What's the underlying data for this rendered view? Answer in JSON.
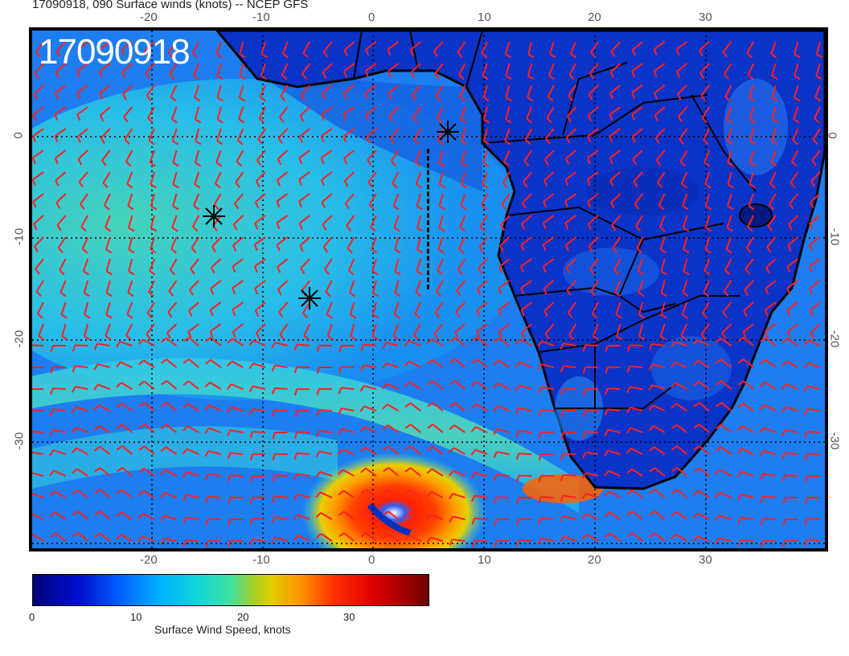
{
  "header": {
    "title": "17090918, 090 Surface winds (knots) -- NCEP GFS"
  },
  "map": {
    "stamp": "17090918",
    "top_lon_labels": [
      "-20",
      "-10",
      "0",
      "10",
      "20",
      "30"
    ],
    "bottom_lon_labels": [
      "-20",
      "-10",
      "0",
      "10",
      "20",
      "30"
    ],
    "left_lat_labels": [
      "0",
      "-10",
      "-20",
      "-30"
    ],
    "right_lat_labels": [
      "0",
      "-10",
      "-20",
      "-30"
    ],
    "markers": [
      "asterisk-marker",
      "asterisk-marker",
      "asterisk-marker"
    ],
    "barb_color": "#ff2020",
    "ocean_low_color": "#0b3fd0",
    "land_color": "#0a33c8",
    "coastline_color": "#000000"
  },
  "colorbar": {
    "ticks": [
      "0",
      "10",
      "20",
      "30"
    ],
    "label": "Surface Wind Speed, knots",
    "range": [
      0,
      37
    ]
  }
}
